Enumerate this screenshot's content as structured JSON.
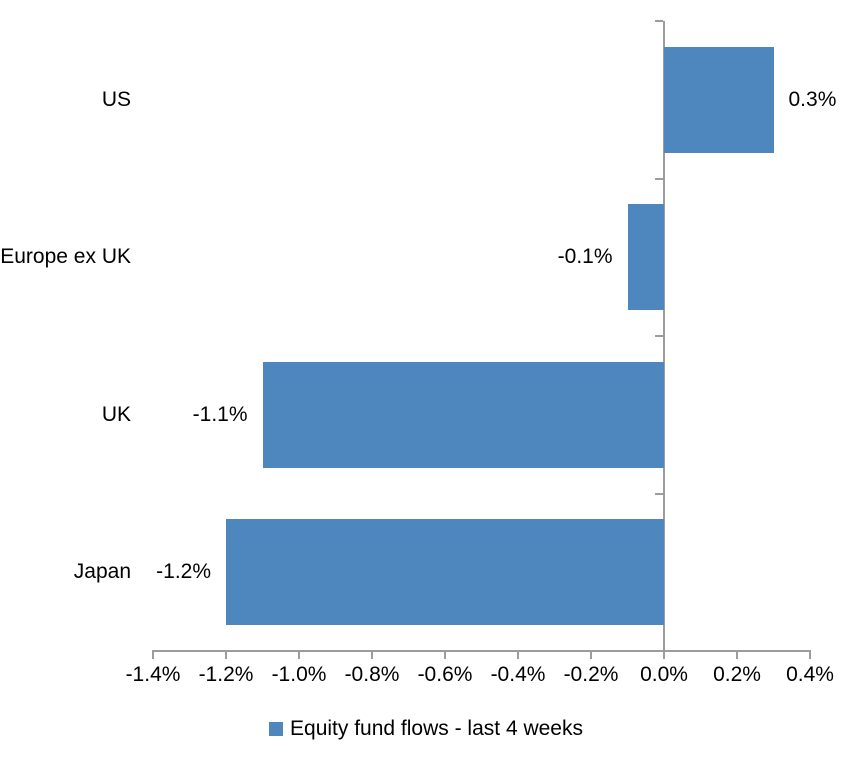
{
  "chart_data": {
    "type": "bar",
    "orientation": "horizontal",
    "title": "",
    "categories": [
      "US",
      "Europe ex UK",
      "UK",
      "Japan"
    ],
    "values": [
      0.3,
      -0.1,
      -1.1,
      -1.2
    ],
    "value_labels": [
      "0.3%",
      "-0.1%",
      "-1.1%",
      "-1.2%"
    ],
    "unit": "%",
    "xlim": [
      -1.4,
      0.4
    ],
    "x_ticks": [
      -1.4,
      -1.2,
      -1.0,
      -0.8,
      -0.6,
      -0.4,
      -0.2,
      0.0,
      0.2,
      0.4
    ],
    "x_tick_labels": [
      "-1.4%",
      "-1.2%",
      "-1.0%",
      "-0.8%",
      "-0.6%",
      "-0.4%",
      "-0.2%",
      "0.0%",
      "0.2%",
      "0.4%"
    ],
    "grid": false,
    "legend_position": "bottom",
    "legend": [
      {
        "label": "Equity fund flows - last 4 weeks",
        "color": "#4E86BE"
      }
    ],
    "colors": {
      "bar": "#4E86BE",
      "axis": "#9C9C9C",
      "text": "#000000",
      "background": "#FFFFFF"
    }
  }
}
